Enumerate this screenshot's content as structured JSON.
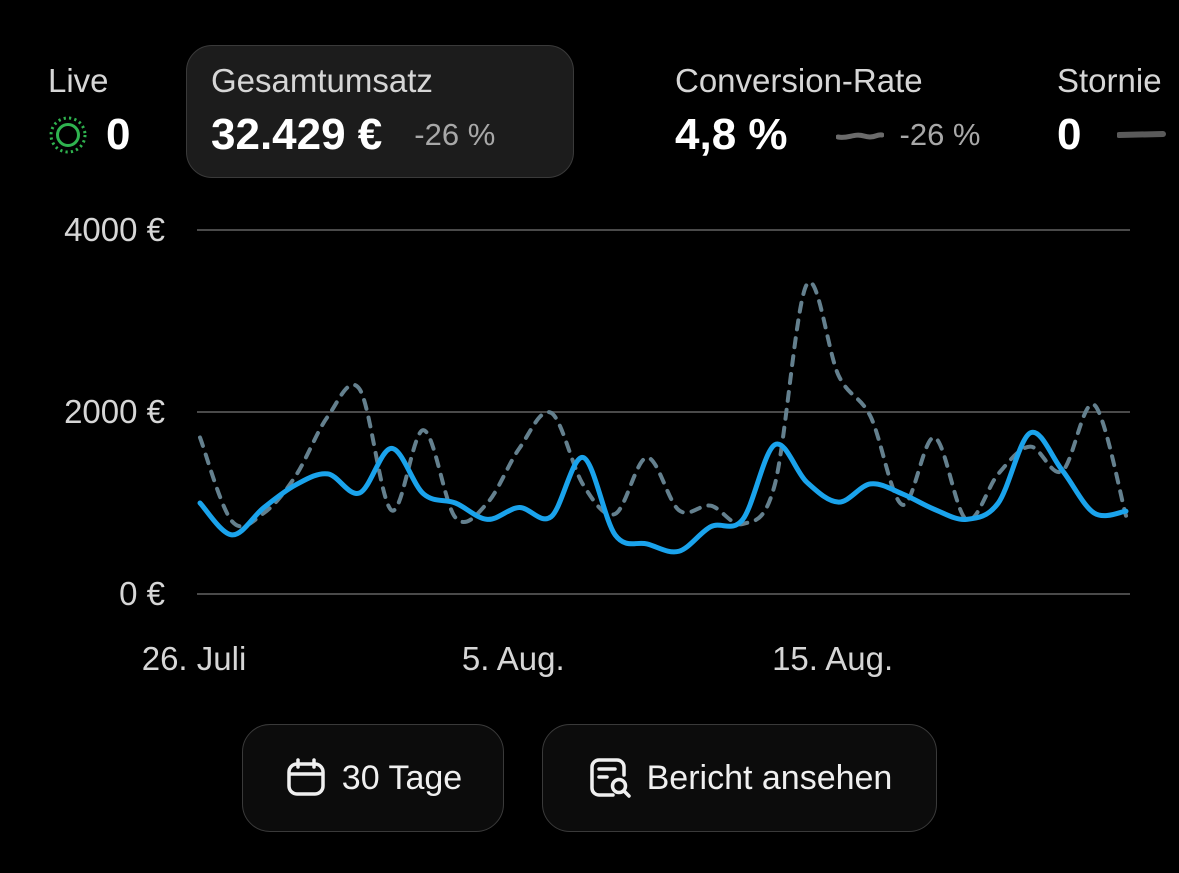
{
  "metrics": {
    "live": {
      "label": "Live",
      "value": "0"
    },
    "revenue": {
      "label": "Gesamtumsatz",
      "value": "32.429 €",
      "delta": "-26 %"
    },
    "conversion": {
      "label": "Conversion-Rate",
      "value": "4,8 %",
      "delta": "-26 %"
    },
    "cancellations": {
      "label": "Stornie",
      "value": "0"
    }
  },
  "colors": {
    "current": "#1aa3ec",
    "previous": "#64808e",
    "live": "#2fb34f",
    "grid": "#4a4a4a"
  },
  "chart_data": {
    "type": "line",
    "x": [
      "26. Juli",
      "27. Juli",
      "28. Juli",
      "29. Juli",
      "30. Juli",
      "31. Juli",
      "1. Aug.",
      "2. Aug.",
      "3. Aug.",
      "4. Aug.",
      "5. Aug.",
      "6. Aug.",
      "7. Aug.",
      "8. Aug.",
      "9. Aug.",
      "10. Aug.",
      "11. Aug.",
      "12. Aug.",
      "13. Aug.",
      "14. Aug.",
      "15. Aug.",
      "16. Aug.",
      "17. Aug.",
      "18. Aug.",
      "19. Aug.",
      "20. Aug.",
      "21. Aug.",
      "22. Aug.",
      "23. Aug.",
      "24. Aug."
    ],
    "x_ticks": [
      "26. Juli",
      "5. Aug.",
      "15. Aug."
    ],
    "y_ticks": [
      "4000 €",
      "2000 €",
      "0 €"
    ],
    "ylim": [
      0,
      4000
    ],
    "series": [
      {
        "name": "",
        "style": "solid",
        "values": [
          1000,
          650,
          950,
          1200,
          1320,
          1110,
          1600,
          1100,
          1000,
          820,
          950,
          850,
          1500,
          650,
          550,
          470,
          740,
          820,
          1640,
          1230,
          1010,
          1210,
          1100,
          930,
          820,
          1000,
          1770,
          1360,
          890,
          910
        ]
      },
      {
        "name": "",
        "style": "dashed",
        "values": [
          1720,
          800,
          890,
          1300,
          1950,
          2250,
          920,
          1800,
          840,
          1000,
          1600,
          1990,
          1200,
          880,
          1500,
          920,
          970,
          770,
          1200,
          3400,
          2400,
          1950,
          980,
          1720,
          820,
          1320,
          1620,
          1350,
          2080,
          860
        ]
      }
    ]
  },
  "buttons": {
    "range": {
      "label": "30 Tage",
      "icon": "calendar-icon"
    },
    "report": {
      "label": "Bericht ansehen",
      "icon": "report-search-icon"
    }
  }
}
